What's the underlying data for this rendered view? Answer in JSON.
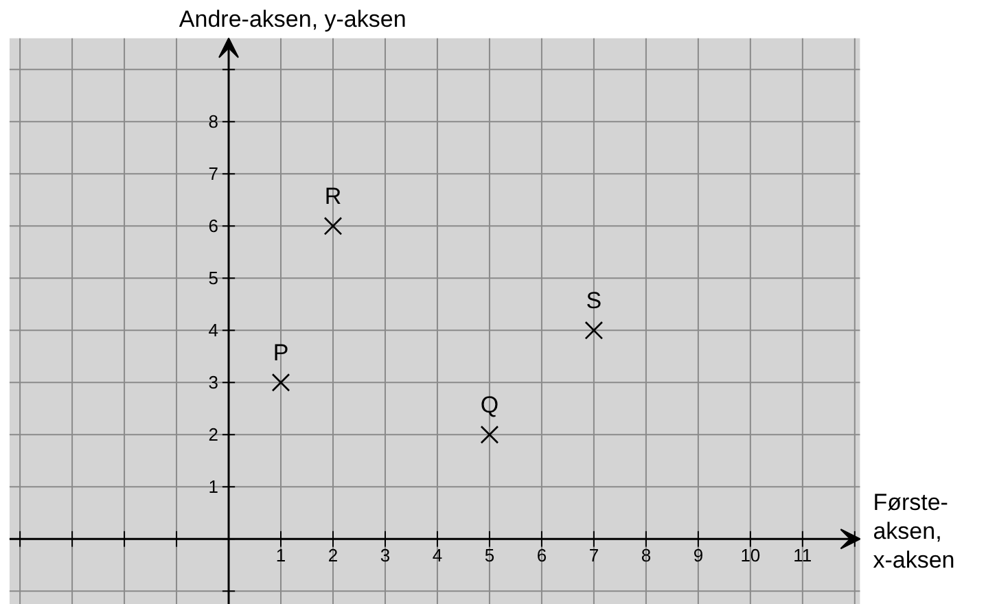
{
  "chart_data": {
    "type": "scatter",
    "xlabel": "Første-\naksen,\nx-aksen",
    "ylabel": "Andre-aksen, y-aksen",
    "x": [
      1,
      5,
      2,
      7
    ],
    "values": [
      3,
      2,
      6,
      4
    ],
    "color": "#000000",
    "marker": "cross",
    "grid": true,
    "xlim": [
      -4.2,
      12.1
    ],
    "ylim": [
      -1.26,
      9.6
    ],
    "xticks": [
      {
        "value": -4,
        "label": null
      },
      {
        "value": -3,
        "label": null
      },
      {
        "value": -2,
        "label": null
      },
      {
        "value": -1,
        "label": null
      },
      {
        "value": 0,
        "label": null
      },
      1,
      2,
      3,
      4,
      5,
      6,
      7,
      8,
      9,
      10,
      11,
      {
        "value": 12,
        "label": null
      }
    ],
    "yticks": [
      {
        "value": -1,
        "label": null
      },
      {
        "value": 0,
        "label": null
      },
      1,
      2,
      3,
      4,
      5,
      6,
      7,
      8,
      {
        "value": 9,
        "label": null
      }
    ],
    "annotations": [
      {
        "text": "P",
        "x": 1,
        "y": 3
      },
      {
        "text": "Q",
        "x": 5,
        "y": 2
      },
      {
        "text": "R",
        "x": 2,
        "y": 6
      },
      {
        "text": "S",
        "x": 7,
        "y": 4
      }
    ]
  }
}
